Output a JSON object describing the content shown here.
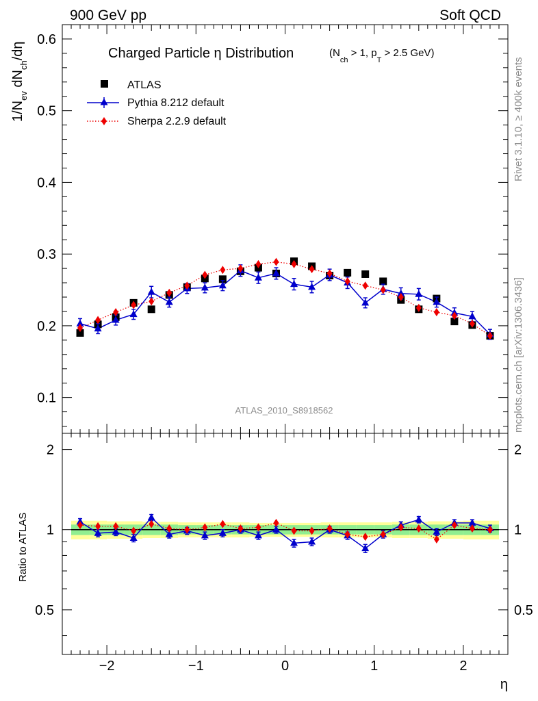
{
  "header": {
    "left": "900 GeV pp",
    "right": "Soft QCD"
  },
  "side_text": {
    "rivet": "Rivet 3.1.10, ≥ 400k events",
    "mcplots": "mcplots.cern.ch [arXiv:1306.3436]"
  },
  "analysis_id": "ATLAS_2010_S8918562",
  "colors": {
    "atlas": "#000000",
    "pythia": "#0000cc",
    "sherpa": "#ee0000",
    "band_inner": "#90ee90",
    "band_outer": "#ffff99"
  },
  "chart_data": [
    {
      "type": "scatter",
      "title": "Charged Particle η Distribution",
      "title_cuts": "(N_ch > 1, p_T > 2.5 GeV)",
      "xlabel": "η",
      "ylabel": "1/N_ev dN_ch/dη",
      "xlim": [
        -2.5,
        2.5
      ],
      "ylim": [
        0.05,
        0.62
      ],
      "yticks": [
        0.1,
        0.2,
        0.3,
        0.4,
        0.5,
        0.6
      ],
      "ytick_labels": [
        "0.1",
        "0.2",
        "0.3",
        "0.4",
        "0.5",
        "0.6"
      ],
      "legend_position": "top-left",
      "x": [
        -2.3,
        -2.1,
        -1.9,
        -1.7,
        -1.5,
        -1.3,
        -1.1,
        -0.9,
        -0.7,
        -0.5,
        -0.3,
        -0.1,
        0.1,
        0.3,
        0.5,
        0.7,
        0.9,
        1.1,
        1.3,
        1.5,
        1.7,
        1.9,
        2.1,
        2.3
      ],
      "series": [
        {
          "name": "ATLAS",
          "style": "square-marker",
          "values": [
            0.19,
            0.202,
            0.212,
            0.232,
            0.223,
            0.243,
            0.254,
            0.266,
            0.265,
            0.276,
            0.281,
            0.273,
            0.29,
            0.283,
            0.27,
            0.274,
            0.272,
            0.262,
            0.236,
            0.223,
            0.238,
            0.206,
            0.201,
            0.186
          ],
          "errors": [
            0.003,
            0.003,
            0.003,
            0.003,
            0.003,
            0.003,
            0.003,
            0.003,
            0.003,
            0.003,
            0.003,
            0.003,
            0.003,
            0.003,
            0.003,
            0.003,
            0.003,
            0.003,
            0.003,
            0.003,
            0.003,
            0.003,
            0.003,
            0.003
          ]
        },
        {
          "name": "Pythia 8.212 default",
          "style": "solid-line-triangle",
          "values": [
            0.203,
            0.196,
            0.208,
            0.216,
            0.247,
            0.233,
            0.252,
            0.253,
            0.256,
            0.277,
            0.267,
            0.273,
            0.258,
            0.254,
            0.271,
            0.26,
            0.232,
            0.251,
            0.245,
            0.244,
            0.233,
            0.218,
            0.213,
            0.188
          ],
          "errors": [
            0.007,
            0.007,
            0.007,
            0.007,
            0.008,
            0.007,
            0.007,
            0.007,
            0.007,
            0.008,
            0.008,
            0.008,
            0.008,
            0.008,
            0.008,
            0.008,
            0.007,
            0.007,
            0.008,
            0.008,
            0.007,
            0.007,
            0.007,
            0.007
          ]
        },
        {
          "name": "Sherpa 2.2.9 default",
          "style": "dotted-line-diamond",
          "values": [
            0.197,
            0.208,
            0.219,
            0.229,
            0.234,
            0.246,
            0.256,
            0.271,
            0.278,
            0.28,
            0.286,
            0.289,
            0.286,
            0.279,
            0.273,
            0.262,
            0.256,
            0.25,
            0.24,
            0.225,
            0.219,
            0.214,
            0.203,
            0.186
          ],
          "errors": [
            0.002,
            0.002,
            0.002,
            0.002,
            0.002,
            0.002,
            0.002,
            0.002,
            0.002,
            0.002,
            0.002,
            0.002,
            0.002,
            0.002,
            0.002,
            0.002,
            0.002,
            0.002,
            0.002,
            0.002,
            0.002,
            0.002,
            0.002,
            0.002
          ]
        }
      ]
    },
    {
      "type": "scatter",
      "xlabel": "η",
      "ylabel": "Ratio to ATLAS",
      "xlim": [
        -2.5,
        2.5
      ],
      "ylim": [
        0.34,
        2.3
      ],
      "xticks": [
        -2,
        -1,
        0,
        1,
        2
      ],
      "xtick_labels": [
        "−2",
        "−1",
        "0",
        "1",
        "2"
      ],
      "yticks": [
        0.5,
        1,
        2
      ],
      "ytick_labels": [
        "0.5",
        "1",
        "2"
      ],
      "x": [
        -2.3,
        -2.1,
        -1.9,
        -1.7,
        -1.5,
        -1.3,
        -1.1,
        -0.9,
        -0.7,
        -0.5,
        -0.3,
        -0.1,
        0.1,
        0.3,
        0.5,
        0.7,
        0.9,
        1.1,
        1.3,
        1.5,
        1.7,
        1.9,
        2.1,
        2.3
      ],
      "band_inner_halfwidth": [
        0.045,
        0.045,
        0.045,
        0.045,
        0.045,
        0.045,
        0.04,
        0.04,
        0.04,
        0.04,
        0.04,
        0.04,
        0.04,
        0.04,
        0.04,
        0.04,
        0.04,
        0.04,
        0.045,
        0.045,
        0.045,
        0.045,
        0.045,
        0.045
      ],
      "band_outer_halfwidth": [
        0.08,
        0.08,
        0.075,
        0.075,
        0.07,
        0.07,
        0.065,
        0.065,
        0.065,
        0.065,
        0.06,
        0.06,
        0.06,
        0.06,
        0.065,
        0.065,
        0.065,
        0.065,
        0.07,
        0.07,
        0.075,
        0.075,
        0.08,
        0.08
      ],
      "series": [
        {
          "name": "Pythia 8.212 default",
          "values": [
            1.07,
            0.97,
            0.98,
            0.93,
            1.11,
            0.96,
            0.99,
            0.95,
            0.97,
            1.0,
            0.95,
            1.0,
            0.89,
            0.9,
            1.0,
            0.95,
            0.85,
            0.96,
            1.04,
            1.09,
            0.98,
            1.06,
            1.06,
            1.01
          ],
          "errors": [
            0.03,
            0.03,
            0.03,
            0.03,
            0.03,
            0.03,
            0.03,
            0.03,
            0.03,
            0.03,
            0.03,
            0.03,
            0.03,
            0.03,
            0.03,
            0.03,
            0.03,
            0.03,
            0.03,
            0.03,
            0.03,
            0.03,
            0.03,
            0.03
          ]
        },
        {
          "name": "Sherpa 2.2.9 default",
          "values": [
            1.04,
            1.03,
            1.03,
            0.99,
            1.05,
            1.01,
            1.0,
            1.02,
            1.05,
            1.01,
            1.02,
            1.06,
            0.99,
            0.99,
            1.01,
            0.96,
            0.94,
            0.96,
            1.02,
            1.01,
            0.92,
            1.04,
            1.01,
            1.0
          ],
          "errors": [
            0.01,
            0.01,
            0.01,
            0.01,
            0.01,
            0.01,
            0.01,
            0.01,
            0.01,
            0.01,
            0.01,
            0.01,
            0.01,
            0.01,
            0.01,
            0.01,
            0.01,
            0.01,
            0.01,
            0.01,
            0.01,
            0.01,
            0.01,
            0.01
          ]
        }
      ]
    }
  ]
}
